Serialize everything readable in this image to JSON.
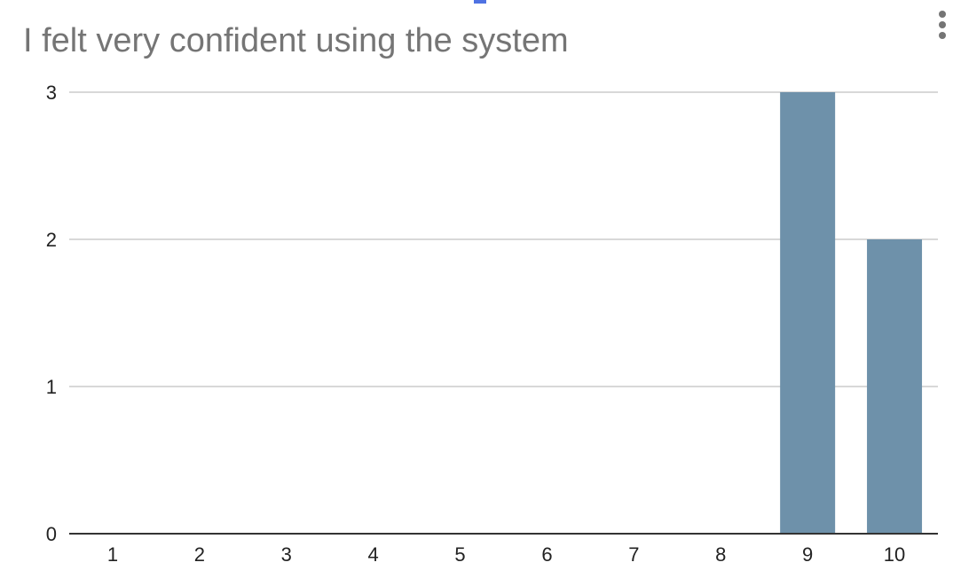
{
  "chart_data": {
    "type": "bar",
    "title": "I felt very confident using the system",
    "xlabel": "",
    "ylabel": "",
    "categories": [
      "1",
      "2",
      "3",
      "4",
      "5",
      "6",
      "7",
      "8",
      "9",
      "10"
    ],
    "values": [
      0,
      0,
      0,
      0,
      0,
      0,
      0,
      0,
      3,
      2
    ],
    "ylim": [
      0,
      3
    ],
    "yticks": [
      "0",
      "1",
      "2",
      "3"
    ],
    "grid": true,
    "legend": "none",
    "bar_color": "#6e91aa",
    "grid_color": "#cccccc",
    "axis_color": "#333333"
  },
  "menu": {
    "icon": "more-vert-icon"
  },
  "colors": {
    "title": "#757575",
    "accent": "#4f72e3"
  }
}
